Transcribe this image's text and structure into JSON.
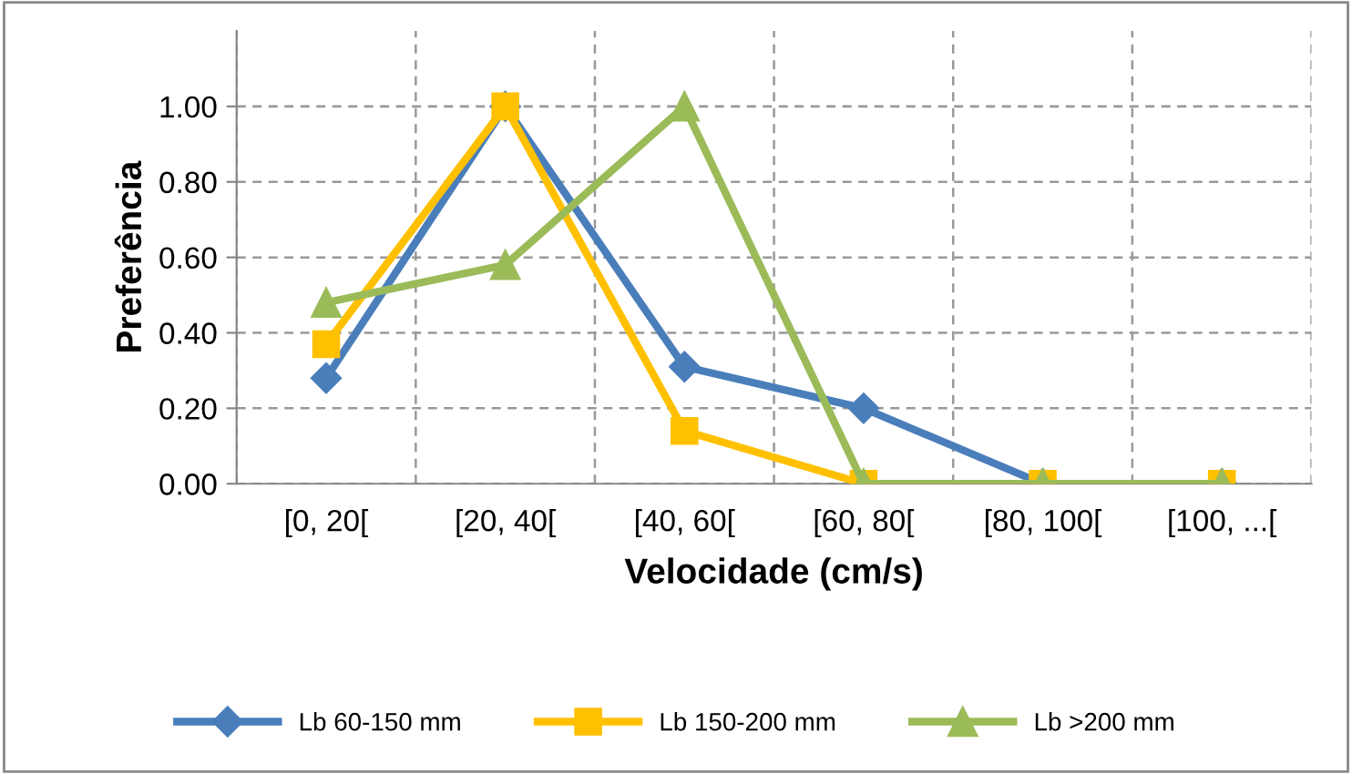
{
  "chart_data": {
    "type": "line",
    "xlabel": "Velocidade (cm/s)",
    "ylabel": "Preferência",
    "categories": [
      "[0, 20[",
      "[20, 40[",
      "[40, 60[",
      "[60, 80[",
      "[80, 100[",
      "[100, ...["
    ],
    "series": [
      {
        "name": "Lb 60-150 mm",
        "color": "#4a7ebb",
        "marker": "diamond",
        "values": [
          0.28,
          1.0,
          0.31,
          0.2,
          0,
          0
        ]
      },
      {
        "name": "Lb 150-200 mm",
        "color": "#ffc000",
        "marker": "square",
        "values": [
          0.37,
          1.0,
          0.14,
          0,
          0,
          0
        ]
      },
      {
        "name": "Lb >200 mm",
        "color": "#9bbb59",
        "marker": "triangle",
        "values": [
          0.48,
          0.58,
          1.0,
          0,
          0,
          0
        ]
      }
    ],
    "ylim": [
      0,
      1.2
    ],
    "yticks": [
      {
        "value": 0,
        "label": "0.00"
      },
      {
        "value": 0.2,
        "label": "0.20"
      },
      {
        "value": 0.4,
        "label": "0.40"
      },
      {
        "value": 0.6,
        "label": "0.60"
      },
      {
        "value": 0.8,
        "label": "0.80"
      },
      {
        "value": 1.0,
        "label": "1.00"
      }
    ],
    "grid": true,
    "legend": "bottom",
    "line_style": "solid"
  }
}
